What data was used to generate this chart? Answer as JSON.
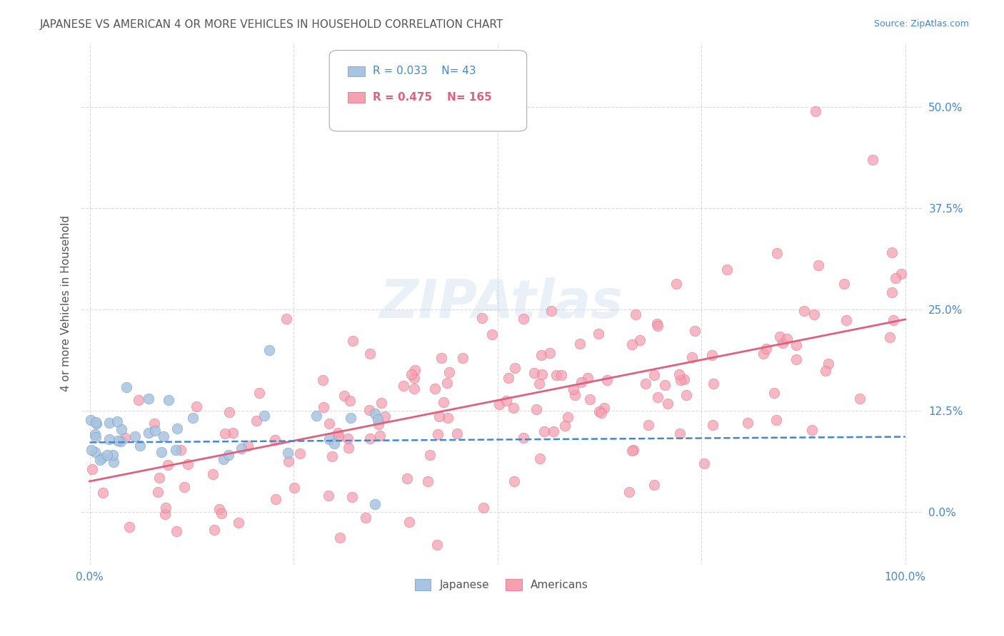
{
  "title": "JAPANESE VS AMERICAN 4 OR MORE VEHICLES IN HOUSEHOLD CORRELATION CHART",
  "source": "Source: ZipAtlas.com",
  "ylabel": "4 or more Vehicles in Household",
  "watermark": "ZIPAtlas",
  "legend_jp_R": "0.033",
  "legend_jp_N": "43",
  "legend_am_R": "0.475",
  "legend_am_N": "165",
  "color_jp": "#a8c4e0",
  "color_jp_edge": "#6699cc",
  "color_am": "#f4a0b0",
  "color_am_edge": "#e06080",
  "color_jp_line": "#4488cc",
  "color_am_line": "#e06080",
  "background_color": "#ffffff",
  "grid_color": "#cccccc",
  "title_color": "#555555",
  "axis_label_color": "#555555",
  "tick_color": "#4488cc",
  "xlim": [
    -0.01,
    1.02
  ],
  "ylim": [
    -0.065,
    0.58
  ],
  "yticks": [
    0.0,
    0.125,
    0.25,
    0.375,
    0.5
  ],
  "ytick_labels": [
    "0.0%",
    "12.5%",
    "25.0%",
    "37.5%",
    "50.0%"
  ],
  "xtick_labels": [
    "0.0%",
    "",
    "",
    "",
    "100.0%"
  ],
  "jp_line_x": [
    0.0,
    1.0
  ],
  "jp_line_y": [
    0.086,
    0.093
  ],
  "am_line_x": [
    0.0,
    1.0
  ],
  "am_line_y": [
    0.038,
    0.238
  ],
  "title_fontsize": 11,
  "source_fontsize": 9,
  "axis_label_fontsize": 11,
  "tick_fontsize": 11,
  "legend_fontsize": 11,
  "scatter_size": 110
}
